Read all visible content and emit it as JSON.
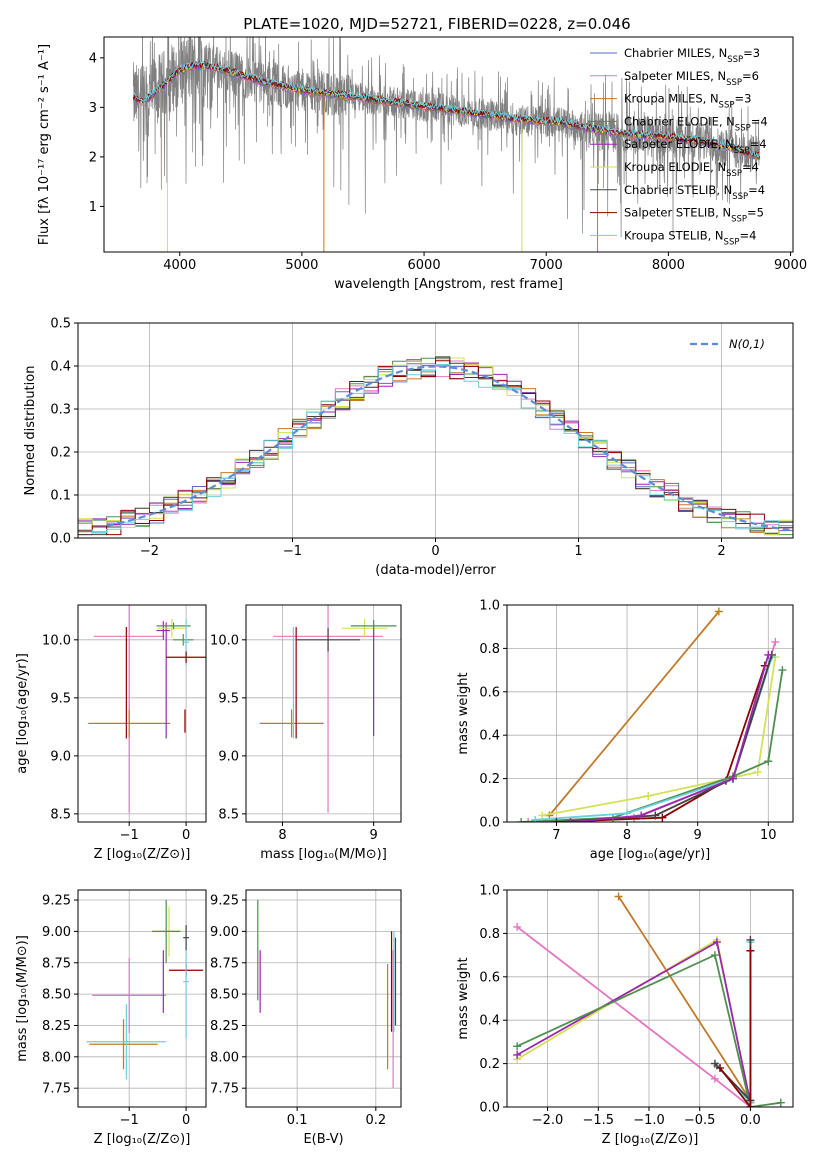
{
  "figure": {
    "title": "PLATE=1020, MJD=52721, FIBERID=0228, z=0.046"
  },
  "chart_data": [
    {
      "id": "spectrum",
      "type": "line",
      "xlabel": "wavelength [Angstrom, rest frame]",
      "ylabel": "Flux [fλ 10⁻¹⁷ erg cm⁻² s⁻¹ A⁻¹]",
      "xlim": [
        3380,
        9020
      ],
      "ylim": [
        0.08,
        4.42
      ],
      "xticks": [
        4000,
        5000,
        6000,
        7000,
        8000,
        9000
      ],
      "yticks": [
        1,
        2,
        3,
        4
      ],
      "grid": false,
      "legend_position": "right",
      "data_x_range": [
        3620,
        8750
      ],
      "observed_color": "#808080",
      "model_continuum": {
        "x": [
          3620,
          3700,
          3850,
          4000,
          4150,
          4300,
          4500,
          4700,
          5000,
          5300,
          5600,
          5900,
          6200,
          6500,
          6800,
          7100,
          7400,
          7700,
          8000,
          8300,
          8500,
          8750
        ],
        "y": [
          3.2,
          3.1,
          3.4,
          3.75,
          3.85,
          3.8,
          3.65,
          3.5,
          3.35,
          3.25,
          3.15,
          3.05,
          2.95,
          2.85,
          2.75,
          2.7,
          2.55,
          2.45,
          2.4,
          2.3,
          2.2,
          2.0
        ]
      },
      "legend": [
        {
          "pre": "Chabrier MILES, N",
          "sub": "SSP",
          "post": "=3",
          "color": "#5c6bc0"
        },
        {
          "pre": "Salpeter MILES, N",
          "sub": "SSP",
          "post": "=6",
          "color": "#e377c2"
        },
        {
          "pre": "Kroupa MILES, N",
          "sub": "SSP",
          "post": "=3",
          "color": "#c07a28"
        },
        {
          "pre": "Chabrier ELODIE, N",
          "sub": "SSP",
          "post": "=4",
          "color": "#4f8f4f"
        },
        {
          "pre": "Salpeter ELODIE, N",
          "sub": "SSP",
          "post": "=4",
          "color": "#9b27b0"
        },
        {
          "pre": "Kroupa ELODIE, N",
          "sub": "SSP",
          "post": "=4",
          "color": "#d4e157"
        },
        {
          "pre": "Chabrier STELIB, N",
          "sub": "SSP",
          "post": "=4",
          "color": "#424242"
        },
        {
          "pre": "Salpeter STELIB, N",
          "sub": "SSP",
          "post": "=5",
          "color": "#8b0000"
        },
        {
          "pre": "Kroupa STELIB, N",
          "sub": "SSP",
          "post": "=4",
          "color": "#6ad0e0"
        }
      ]
    },
    {
      "id": "residuals",
      "type": "line",
      "xlabel": "(data-model)/error",
      "ylabel": "Normed distribution",
      "xlim": [
        -2.5,
        2.5
      ],
      "ylim": [
        0,
        0.5
      ],
      "xticks": [
        -2,
        -1,
        0,
        1,
        2
      ],
      "yticks": [
        0.0,
        0.1,
        0.2,
        0.3,
        0.4,
        0.5
      ],
      "grid": true,
      "legend_position": "top-right",
      "gaussian_label": "N(0,1)",
      "gaussian_color": "#5b8ed6",
      "bin_width": 0.1,
      "bin_start": -2.5,
      "histogram_colors": [
        "#5c6bc0",
        "#e377c2",
        "#c07a28",
        "#4f8f4f",
        "#9b27b0",
        "#d4e157",
        "#424242",
        "#8b0000",
        "#6ad0e0"
      ]
    },
    {
      "id": "age_vs_Z",
      "type": "scatter",
      "xlabel": "Z [log₁₀(Z/Z⊙)]",
      "ylabel": "age  [log₁₀(age/yr)]",
      "xlim": [
        -1.9,
        0.35
      ],
      "ylim": [
        8.43,
        10.3
      ],
      "xticks": [
        -1,
        0
      ],
      "yticks": [
        8.5,
        9.0,
        9.5,
        10.0
      ],
      "grid": true,
      "points": [
        {
          "x": -1.0,
          "y": 10.03,
          "xerr": 0.62,
          "yerr": 1.52,
          "color": "#e377c2"
        },
        {
          "x": -1.0,
          "y": 9.28,
          "xerr": 0.72,
          "yerr": 0.12,
          "color": "#c07a28"
        },
        {
          "x": -1.05,
          "y": 9.63,
          "xerr": 0.0,
          "yerr": 0.48,
          "color": "#8b0000"
        },
        {
          "x": -0.4,
          "y": 10.08,
          "xerr": 0.12,
          "yerr": 0.08,
          "color": "#9b27b0"
        },
        {
          "x": -0.35,
          "y": 9.65,
          "xerr": 0.0,
          "yerr": 0.5,
          "color": "#9b27b0"
        },
        {
          "x": -0.25,
          "y": 10.1,
          "xerr": 0.25,
          "yerr": 0.08,
          "color": "#d4e157"
        },
        {
          "x": -0.22,
          "y": 10.12,
          "xerr": 0.3,
          "yerr": 0.03,
          "color": "#4f8f4f"
        },
        {
          "x": -0.05,
          "y": 10.0,
          "xerr": 0.18,
          "yerr": 0.05,
          "color": "#4f8f4f"
        },
        {
          "x": 0.0,
          "y": 9.98,
          "xerr": 0.05,
          "yerr": 0.2,
          "color": "#6ad0e0"
        },
        {
          "x": 0.0,
          "y": 9.85,
          "xerr": 0.35,
          "yerr": 0.05,
          "color": "#8b0000"
        },
        {
          "x": -0.02,
          "y": 9.3,
          "xerr": 0.0,
          "yerr": 0.1,
          "color": "#8b0000"
        }
      ]
    },
    {
      "id": "age_vs_mass",
      "type": "scatter",
      "xlabel": "mass [log₁₀(M/M⊙)]",
      "ylabel": "",
      "xlim": [
        7.6,
        9.3
      ],
      "ylim": [
        8.43,
        10.3
      ],
      "xticks": [
        8,
        9
      ],
      "yticks": [
        8.5,
        9.0,
        9.5,
        10.0
      ],
      "grid": true,
      "points": [
        {
          "x": 8.5,
          "y": 10.03,
          "xerr": 0.6,
          "yerr": 1.52,
          "color": "#e377c2"
        },
        {
          "x": 8.1,
          "y": 9.28,
          "xerr": 0.35,
          "yerr": 0.12,
          "color": "#c07a28"
        },
        {
          "x": 8.12,
          "y": 9.63,
          "xerr": 0.0,
          "yerr": 0.48,
          "color": "#6ad0e0"
        },
        {
          "x": 8.15,
          "y": 9.63,
          "xerr": 0.0,
          "yerr": 0.48,
          "color": "#8b0000"
        },
        {
          "x": 8.5,
          "y": 10.0,
          "xerr": 0.35,
          "yerr": 0.1,
          "color": "#424242"
        },
        {
          "x": 9.0,
          "y": 9.65,
          "xerr": 0.0,
          "yerr": 0.48,
          "color": "#9b27b0"
        },
        {
          "x": 8.9,
          "y": 10.1,
          "xerr": 0.25,
          "yerr": 0.08,
          "color": "#d4e157"
        },
        {
          "x": 9.0,
          "y": 10.12,
          "xerr": 0.25,
          "yerr": 0.05,
          "color": "#4f8f4f"
        }
      ]
    },
    {
      "id": "massweight_vs_age",
      "type": "line",
      "xlabel": "age  [log₁₀(age/yr)]",
      "ylabel": "mass weight",
      "xlim": [
        6.3,
        10.35
      ],
      "ylim": [
        0,
        1
      ],
      "xticks": [
        7,
        8,
        9,
        10
      ],
      "yticks": [
        0.0,
        0.2,
        0.4,
        0.6,
        0.8,
        1.0
      ],
      "grid": true,
      "series": [
        {
          "color": "#c07a28",
          "x": [
            6.9,
            9.3
          ],
          "y": [
            0.03,
            0.97
          ]
        },
        {
          "color": "#e377c2",
          "x": [
            6.6,
            8.1,
            9.5,
            10.1
          ],
          "y": [
            0.0,
            0.02,
            0.2,
            0.83
          ]
        },
        {
          "color": "#8b0000",
          "x": [
            7.0,
            8.5,
            9.4,
            9.95
          ],
          "y": [
            0.0,
            0.02,
            0.19,
            0.72
          ]
        },
        {
          "color": "#d4e157",
          "x": [
            6.8,
            8.3,
            9.85,
            10.1
          ],
          "y": [
            0.03,
            0.12,
            0.23,
            0.76
          ]
        },
        {
          "color": "#4f8f4f",
          "x": [
            6.5,
            7.8,
            9.5,
            10.0,
            10.2
          ],
          "y": [
            0.0,
            0.02,
            0.21,
            0.28,
            0.7
          ]
        },
        {
          "color": "#6ad0e0",
          "x": [
            6.7,
            8.0,
            9.5,
            10.05
          ],
          "y": [
            0.01,
            0.04,
            0.2,
            0.76
          ]
        },
        {
          "color": "#424242",
          "x": [
            7.0,
            8.4,
            9.5,
            10.05
          ],
          "y": [
            0.0,
            0.03,
            0.2,
            0.77
          ]
        },
        {
          "color": "#9b27b0",
          "x": [
            7.2,
            8.2,
            9.5,
            10.0
          ],
          "y": [
            0.0,
            0.03,
            0.2,
            0.77
          ]
        }
      ]
    },
    {
      "id": "mass_vs_Z",
      "type": "scatter",
      "xlabel": "Z [log₁₀(Z/Z⊙)]",
      "ylabel": "mass [log₁₀(M/M⊙)]",
      "xlim": [
        -1.9,
        0.35
      ],
      "ylim": [
        7.6,
        9.33
      ],
      "xticks": [
        -1,
        0
      ],
      "yticks": [
        7.75,
        8.0,
        8.25,
        8.5,
        8.75,
        9.0,
        9.25
      ],
      "grid": true,
      "points": [
        {
          "x": -1.0,
          "y": 8.49,
          "xerr": 0.65,
          "yerr": 0.3,
          "color": "#e377c2"
        },
        {
          "x": -1.1,
          "y": 8.1,
          "xerr": 0.6,
          "yerr": 0.2,
          "color": "#c07a28"
        },
        {
          "x": -1.05,
          "y": 8.12,
          "xerr": 0.7,
          "yerr": 0.3,
          "color": "#6ad0e0"
        },
        {
          "x": -0.4,
          "y": 8.6,
          "xerr": 0.0,
          "yerr": 0.25,
          "color": "#9b27b0"
        },
        {
          "x": -0.3,
          "y": 9.0,
          "xerr": 0.3,
          "yerr": 0.2,
          "color": "#d4e157"
        },
        {
          "x": -0.35,
          "y": 9.0,
          "xerr": 0.25,
          "yerr": 0.25,
          "color": "#4f8f4f"
        },
        {
          "x": 0.0,
          "y": 8.69,
          "xerr": 0.3,
          "yerr": 0.05,
          "color": "#8b0000"
        },
        {
          "x": 0.0,
          "y": 8.6,
          "xerr": 0.05,
          "yerr": 0.45,
          "color": "#6ad0e0"
        },
        {
          "x": 0.0,
          "y": 8.95,
          "xerr": 0.05,
          "yerr": 0.1,
          "color": "#424242"
        }
      ]
    },
    {
      "id": "mass_vs_ebv",
      "type": "scatter",
      "xlabel": "E(B-V)",
      "ylabel": "",
      "xlim": [
        0.035,
        0.232
      ],
      "ylim": [
        7.6,
        9.33
      ],
      "xticks": [
        0.1,
        0.2
      ],
      "yticks": [
        7.75,
        8.0,
        8.25,
        8.5,
        8.75,
        9.0,
        9.25
      ],
      "grid": true,
      "points": [
        {
          "x": 0.05,
          "y": 8.85,
          "xerr": 0.0,
          "yerr": 0.4,
          "color": "#4f8f4f"
        },
        {
          "x": 0.053,
          "y": 8.6,
          "xerr": 0.0,
          "yerr": 0.25,
          "color": "#9b27b0"
        },
        {
          "x": 0.215,
          "y": 8.32,
          "xerr": 0.0,
          "yerr": 0.42,
          "color": "#c07a28"
        },
        {
          "x": 0.22,
          "y": 8.6,
          "xerr": 0.0,
          "yerr": 0.4,
          "color": "#8b0000"
        },
        {
          "x": 0.222,
          "y": 8.3,
          "xerr": 0.0,
          "yerr": 0.55,
          "color": "#e377c2"
        },
        {
          "x": 0.223,
          "y": 8.6,
          "xerr": 0.0,
          "yerr": 0.4,
          "color": "#6ad0e0"
        },
        {
          "x": 0.225,
          "y": 8.6,
          "xerr": 0.0,
          "yerr": 0.35,
          "color": "#424242"
        }
      ]
    },
    {
      "id": "massweight_vs_Z",
      "type": "line",
      "xlabel": "Z [log₁₀(Z/Z⊙)]",
      "ylabel": "mass weight",
      "xlim": [
        -2.4,
        0.42
      ],
      "ylim": [
        0,
        1
      ],
      "xticks": [
        -2.0,
        -1.5,
        -1.0,
        -0.5,
        0.0
      ],
      "yticks": [
        0.0,
        0.2,
        0.4,
        0.6,
        0.8,
        1.0
      ],
      "grid": true,
      "series": [
        {
          "color": "#c07a28",
          "x": [
            -1.3,
            0.0
          ],
          "y": [
            0.97,
            0.03
          ]
        },
        {
          "color": "#e377c2",
          "x": [
            -2.3,
            -0.35,
            0.0
          ],
          "y": [
            0.83,
            0.13,
            0.0
          ]
        },
        {
          "color": "#d4e157",
          "x": [
            -2.3,
            -0.33,
            0.0
          ],
          "y": [
            0.22,
            0.77,
            0.02
          ]
        },
        {
          "color": "#9b27b0",
          "x": [
            -2.3,
            -0.33,
            0.0
          ],
          "y": [
            0.24,
            0.76,
            0.02
          ]
        },
        {
          "color": "#4f8f4f",
          "x": [
            -2.3,
            -0.35,
            0.0,
            0.3
          ],
          "y": [
            0.28,
            0.7,
            0.0,
            0.02
          ]
        },
        {
          "color": "#6ad0e0",
          "x": [
            -0.33,
            0.0,
            0.0
          ],
          "y": [
            0.19,
            0.02,
            0.76
          ]
        },
        {
          "color": "#424242",
          "x": [
            -0.35,
            0.0,
            0.0
          ],
          "y": [
            0.2,
            0.03,
            0.77
          ]
        },
        {
          "color": "#8b0000",
          "x": [
            -0.3,
            0.0,
            0.0
          ],
          "y": [
            0.18,
            0.0,
            0.72
          ]
        }
      ]
    }
  ]
}
